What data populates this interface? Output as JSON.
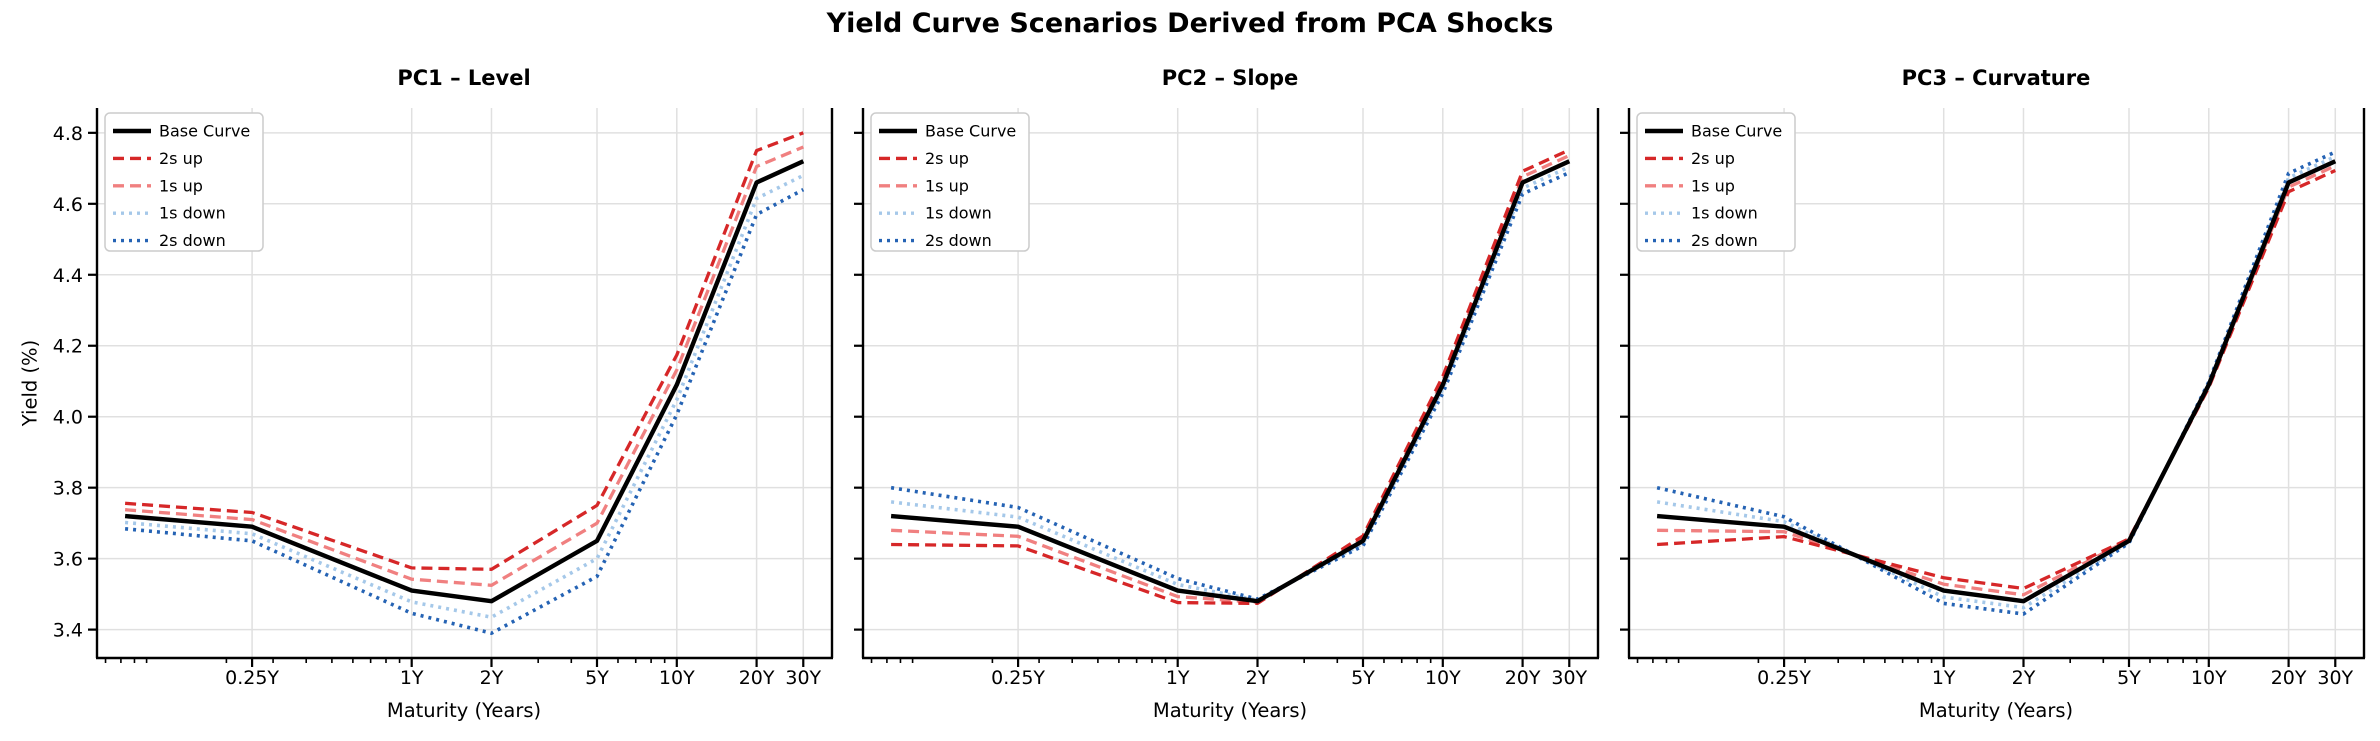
{
  "figure": {
    "title": "Yield Curve Scenarios Derived from PCA Shocks",
    "background": "#ffffff"
  },
  "axes": {
    "xlabel": "Maturity (Years)",
    "ylabel": "Yield (%)",
    "x_scale": "log",
    "xlim": [
      0.065,
      38.5
    ],
    "ylim": [
      3.32,
      4.87
    ],
    "yticks": [
      3.4,
      3.6,
      3.8,
      4.0,
      4.2,
      4.4,
      4.6,
      4.8
    ],
    "xticks": [
      {
        "m": 0.25,
        "label": "0.25Y"
      },
      {
        "m": 1,
        "label": "1Y"
      },
      {
        "m": 2,
        "label": "2Y"
      },
      {
        "m": 5,
        "label": "5Y"
      },
      {
        "m": 10,
        "label": "10Y"
      },
      {
        "m": 20,
        "label": "20Y"
      },
      {
        "m": 30,
        "label": "30Y"
      }
    ],
    "x_minor_ticks": [
      0.07,
      0.08,
      0.09,
      0.1,
      0.2,
      0.3,
      0.4,
      0.5,
      0.6,
      0.7,
      0.8,
      0.9,
      3,
      4,
      6,
      7,
      8,
      9
    ],
    "grid": true,
    "grid_color": "#e0e0e0",
    "spine_color": "#000000"
  },
  "legend": {
    "position": "upper-left",
    "border_color": "#cccccc",
    "entries": [
      {
        "label": "Base Curve",
        "color": "#000000",
        "style": "solid"
      },
      {
        "label": "2s up",
        "color": "#d62728",
        "style": "dashed"
      },
      {
        "label": "1s up",
        "color": "#f08080",
        "style": "dashed"
      },
      {
        "label": "1s down",
        "color": "#a5c8e9",
        "style": "dotted"
      },
      {
        "label": "2s down",
        "color": "#2563b4",
        "style": "dotted"
      }
    ]
  },
  "chart_data": [
    {
      "type": "line",
      "title": "PC1 – Level",
      "x_maturities_years": [
        0.083,
        0.25,
        1,
        2,
        5,
        10,
        20,
        30
      ],
      "series": [
        {
          "name": "Base Curve",
          "color": "#000000",
          "style": "solid",
          "values": [
            3.72,
            3.69,
            3.51,
            3.48,
            3.65,
            4.09,
            4.66,
            4.72
          ]
        },
        {
          "name": "2s up",
          "color": "#d62728",
          "style": "dashed",
          "values": [
            3.756,
            3.73,
            3.574,
            3.57,
            3.75,
            4.174,
            4.75,
            4.8
          ]
        },
        {
          "name": "1s up",
          "color": "#f08080",
          "style": "dashed",
          "values": [
            3.738,
            3.71,
            3.542,
            3.525,
            3.7,
            4.132,
            4.705,
            4.76
          ]
        },
        {
          "name": "1s down",
          "color": "#a5c8e9",
          "style": "dotted",
          "values": [
            3.702,
            3.67,
            3.478,
            3.435,
            3.6,
            4.048,
            4.615,
            4.68
          ]
        },
        {
          "name": "2s down",
          "color": "#2563b4",
          "style": "dotted",
          "values": [
            3.684,
            3.65,
            3.446,
            3.39,
            3.55,
            4.006,
            4.57,
            4.64
          ]
        }
      ]
    },
    {
      "type": "line",
      "title": "PC2 – Slope",
      "x_maturities_years": [
        0.083,
        0.25,
        1,
        2,
        5,
        10,
        20,
        30
      ],
      "series": [
        {
          "name": "Base Curve",
          "color": "#000000",
          "style": "solid",
          "values": [
            3.72,
            3.69,
            3.51,
            3.48,
            3.65,
            4.09,
            4.66,
            4.72
          ]
        },
        {
          "name": "2s up",
          "color": "#d62728",
          "style": "dashed",
          "values": [
            3.64,
            3.636,
            3.476,
            3.474,
            3.664,
            4.114,
            4.692,
            4.752
          ]
        },
        {
          "name": "1s up",
          "color": "#f08080",
          "style": "dashed",
          "values": [
            3.68,
            3.663,
            3.493,
            3.477,
            3.657,
            4.102,
            4.676,
            4.736
          ]
        },
        {
          "name": "1s down",
          "color": "#a5c8e9",
          "style": "dotted",
          "values": [
            3.76,
            3.717,
            3.527,
            3.483,
            3.643,
            4.078,
            4.644,
            4.704
          ]
        },
        {
          "name": "2s down",
          "color": "#2563b4",
          "style": "dotted",
          "values": [
            3.8,
            3.744,
            3.544,
            3.486,
            3.636,
            4.066,
            4.628,
            4.688
          ]
        }
      ]
    },
    {
      "type": "line",
      "title": "PC3 – Curvature",
      "x_maturities_years": [
        0.083,
        0.25,
        1,
        2,
        5,
        10,
        20,
        30
      ],
      "series": [
        {
          "name": "Base Curve",
          "color": "#000000",
          "style": "solid",
          "values": [
            3.72,
            3.69,
            3.51,
            3.48,
            3.65,
            4.09,
            4.66,
            4.72
          ]
        },
        {
          "name": "2s up",
          "color": "#d62728",
          "style": "dashed",
          "values": [
            3.64,
            3.662,
            3.546,
            3.516,
            3.656,
            4.082,
            4.634,
            4.694
          ]
        },
        {
          "name": "1s up",
          "color": "#f08080",
          "style": "dashed",
          "values": [
            3.68,
            3.676,
            3.528,
            3.498,
            3.653,
            4.086,
            4.647,
            4.707
          ]
        },
        {
          "name": "1s down",
          "color": "#a5c8e9",
          "style": "dotted",
          "values": [
            3.76,
            3.704,
            3.492,
            3.462,
            3.647,
            4.094,
            4.673,
            4.733
          ]
        },
        {
          "name": "2s down",
          "color": "#2563b4",
          "style": "dotted",
          "values": [
            3.8,
            3.718,
            3.474,
            3.444,
            3.644,
            4.098,
            4.686,
            4.746
          ]
        }
      ]
    }
  ]
}
